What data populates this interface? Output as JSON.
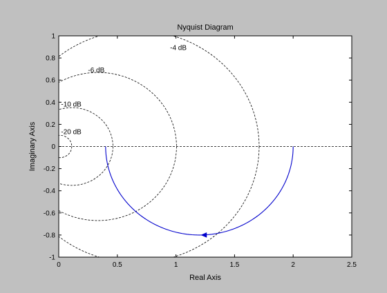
{
  "chart_data": {
    "type": "line",
    "title": "Nyquist Diagram",
    "xlabel": "Real Axis",
    "ylabel": "Imaginary Axis",
    "xlim": [
      0,
      2.5
    ],
    "ylim": [
      -1,
      1
    ],
    "grid": false,
    "x_ticks": [
      0,
      0.5,
      1,
      1.5,
      2,
      2.5
    ],
    "x_tick_labels": [
      "0",
      "0.5",
      "1",
      "1.5",
      "2",
      "2.5"
    ],
    "y_ticks": [
      -1,
      -0.8,
      -0.6,
      -0.4,
      -0.2,
      0,
      0.2,
      0.4,
      0.6,
      0.8,
      1
    ],
    "y_tick_labels": [
      "-1",
      "-0.8",
      "-0.6",
      "-0.4",
      "-0.2",
      "0",
      "0.2",
      "0.4",
      "0.6",
      "0.8",
      "1"
    ],
    "series": [
      {
        "color": "#0000cc",
        "shape": "semicircle",
        "center": [
          1.2,
          0
        ],
        "radius": 0.8,
        "from_real": 2.0,
        "to_real": 0.4,
        "arrow_at": [
          1.25,
          -0.8
        ],
        "arrow_direction": "left"
      }
    ],
    "reference_lines": [
      {
        "axis": "y",
        "value": 0,
        "style": "dashed",
        "color": "#000000"
      }
    ],
    "m_circles": [
      {
        "label": "-4 dB",
        "db": -4,
        "label_at": [
          0.95,
          0.89
        ]
      },
      {
        "label": "-6 dB",
        "db": -6,
        "label_at": [
          0.25,
          0.69
        ]
      },
      {
        "label": "-10 dB",
        "db": -10,
        "label_at": [
          0.02,
          0.38
        ]
      },
      {
        "label": "-20 dB",
        "db": -20,
        "label_at": [
          0.02,
          0.13
        ]
      }
    ]
  }
}
